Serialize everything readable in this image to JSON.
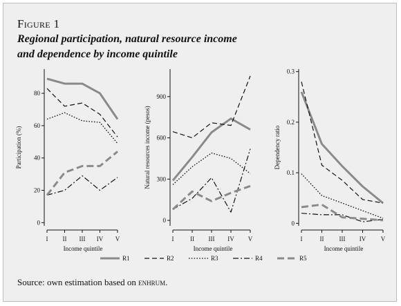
{
  "figure": {
    "label": "Figure 1",
    "title_line1": "Regional participation, natural resource income",
    "title_line2": "and dependence by income quintile",
    "source_prefix": "Source: own estimation based on ",
    "source_dataset": "enhrum",
    "source_suffix": "."
  },
  "colors": {
    "gray": "#8a8a8a",
    "black": "#111111",
    "background": "#efefef"
  },
  "legend": [
    {
      "name": "R1",
      "style": "gray-solid"
    },
    {
      "name": "R2",
      "style": "black-dash"
    },
    {
      "name": "R3",
      "style": "black-dot"
    },
    {
      "name": "R4",
      "style": "black-dashdot"
    },
    {
      "name": "R5",
      "style": "gray-dash"
    }
  ],
  "chart_data": [
    {
      "type": "line",
      "categories": [
        "I",
        "II",
        "III",
        "IV",
        "V"
      ],
      "xlabel": "Income quintile",
      "ylabel": "Participation (%)",
      "ylim": [
        -2,
        95
      ],
      "yticks": [
        0,
        20,
        40,
        60,
        80
      ],
      "ytick_labels": [
        "0",
        "20",
        "40",
        "60",
        "80"
      ],
      "series": [
        {
          "name": "R1",
          "values": [
            89,
            86,
            86,
            80,
            64
          ]
        },
        {
          "name": "R2",
          "values": [
            83,
            72,
            74,
            67,
            53
          ]
        },
        {
          "name": "R3",
          "values": [
            64,
            68,
            63,
            62,
            49
          ]
        },
        {
          "name": "R4",
          "values": [
            17,
            20,
            29,
            20,
            28
          ]
        },
        {
          "name": "R5",
          "values": [
            17,
            31,
            35,
            35,
            44
          ]
        }
      ]
    },
    {
      "type": "line",
      "categories": [
        "I",
        "II",
        "III",
        "IV",
        "V"
      ],
      "xlabel": "Income quintile",
      "ylabel": "Natural resources income (pesos)",
      "ylim": [
        -40,
        1100
      ],
      "yticks": [
        0,
        300,
        600,
        900
      ],
      "ytick_labels": [
        "0",
        "300",
        "600",
        "900"
      ],
      "series": [
        {
          "name": "R1",
          "values": [
            290,
            460,
            640,
            740,
            660
          ]
        },
        {
          "name": "R2",
          "values": [
            645,
            600,
            710,
            690,
            1050
          ]
        },
        {
          "name": "R3",
          "values": [
            260,
            390,
            490,
            450,
            340
          ]
        },
        {
          "name": "R4",
          "values": [
            80,
            160,
            310,
            60,
            520
          ]
        },
        {
          "name": "R5",
          "values": [
            80,
            210,
            140,
            200,
            250
          ]
        }
      ]
    },
    {
      "type": "line",
      "categories": [
        "I",
        "II",
        "III",
        "IV",
        "V"
      ],
      "xlabel": "Income quintile",
      "ylabel": "Dependency ratio",
      "ylim": [
        -0.005,
        0.305
      ],
      "yticks": [
        0,
        0.1,
        0.2,
        0.3
      ],
      "ytick_labels": [
        "0",
        "0.1",
        "0.2",
        "0.3"
      ],
      "series": [
        {
          "name": "R1",
          "values": [
            0.26,
            0.157,
            0.113,
            0.073,
            0.04
          ]
        },
        {
          "name": "R2",
          "values": [
            0.28,
            0.115,
            0.085,
            0.047,
            0.04
          ]
        },
        {
          "name": "R3",
          "values": [
            0.098,
            0.055,
            0.04,
            0.025,
            0.01
          ]
        },
        {
          "name": "R4",
          "values": [
            0.02,
            0.017,
            0.017,
            0.003,
            0.008
          ]
        },
        {
          "name": "R5",
          "values": [
            0.032,
            0.037,
            0.012,
            0.009,
            0.006
          ]
        }
      ]
    }
  ]
}
